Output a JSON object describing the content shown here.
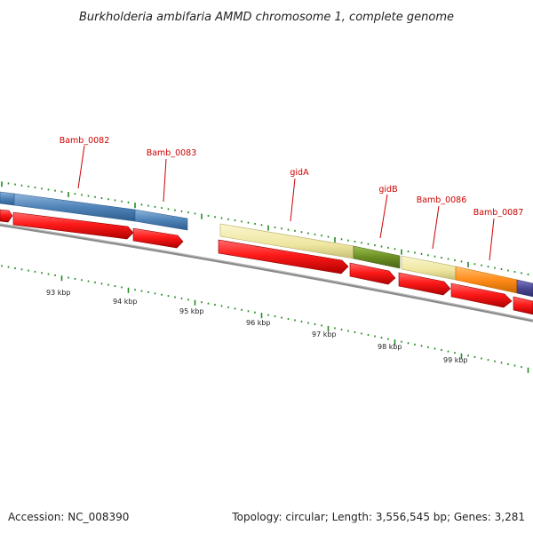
{
  "title": "Burkholderia ambifaria AMMD chromosome 1, complete genome",
  "footer": {
    "accession": "Accession: NC_008390",
    "summary": "Topology: circular; Length: 3,556,545 bp; Genes: 3,281"
  },
  "genes": [
    {
      "id": "g-left",
      "label": ""
    },
    {
      "id": "Bamb_0082",
      "label": "Bamb_0082"
    },
    {
      "id": "Bamb_0083",
      "label": "Bamb_0083"
    },
    {
      "id": "gidA",
      "label": "gidA"
    },
    {
      "id": "gidB",
      "label": "gidB"
    },
    {
      "id": "Bamb_0086",
      "label": "Bamb_0086"
    },
    {
      "id": "Bamb_0087",
      "label": "Bamb_0087"
    },
    {
      "id": "g-right",
      "label": ""
    }
  ],
  "scale": {
    "unit": "kbp",
    "labels": [
      "93 kbp",
      "94 kbp",
      "95 kbp",
      "96 kbp",
      "97 kbp",
      "98 kbp",
      "99 kbp"
    ]
  },
  "colors": {
    "gene_red": "#ee1111",
    "blue": "#4f83b8",
    "khaki": "#eee6a0",
    "olive": "#6b8e23",
    "orange": "#ff8c1a",
    "purple": "#4b4896",
    "tick_green": "#228b22",
    "label_red": "#cc0000",
    "backbone": "#8a8a8a"
  }
}
